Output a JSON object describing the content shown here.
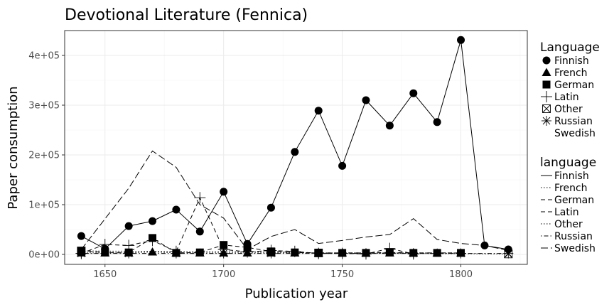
{
  "chart_data": {
    "type": "line",
    "title": "Devotional Literature (Fennica)",
    "xlabel": "Publication year",
    "ylabel": "Paper consumption",
    "xlim": [
      1633,
      1828
    ],
    "ylim": [
      -20000,
      450000
    ],
    "x_ticks": [
      1650,
      1700,
      1750,
      1800
    ],
    "y_ticks": [
      0,
      100000,
      200000,
      300000,
      400000
    ],
    "y_tick_labels": [
      "0e+00",
      "1e+05",
      "2e+05",
      "3e+05",
      "4e+05"
    ],
    "grid": true,
    "legend_placement": "right",
    "legend_shape_title": "Language",
    "legend_line_title": "language",
    "series": [
      {
        "name": "Finnish",
        "marker": "circle",
        "line": "solid",
        "x": [
          1640,
          1650,
          1660,
          1670,
          1680,
          1690,
          1700,
          1710,
          1720,
          1730,
          1740,
          1750,
          1760,
          1770,
          1780,
          1790,
          1800,
          1810,
          1820
        ],
        "y": [
          37000,
          11000,
          57000,
          67000,
          90000,
          46000,
          126000,
          21000,
          94000,
          206000,
          289000,
          178000,
          310000,
          259000,
          324000,
          266000,
          431000,
          18000,
          10000
        ]
      },
      {
        "name": "French",
        "marker": "triangle",
        "line": "dotted",
        "x": [
          1640,
          1650,
          1660,
          1670,
          1680,
          1690,
          1700,
          1710,
          1720,
          1730,
          1740,
          1750,
          1760,
          1770,
          1780,
          1790,
          1800
        ],
        "y": [
          3000,
          3000,
          3000,
          5000,
          3000,
          3000,
          3000,
          3000,
          3000,
          3000,
          3000,
          3000,
          3000,
          3000,
          3000,
          3000,
          3000
        ]
      },
      {
        "name": "German",
        "marker": "square",
        "line": "dashed",
        "x": [
          1640,
          1650,
          1660,
          1670,
          1680,
          1690,
          1700,
          1710,
          1720,
          1730,
          1740,
          1750,
          1760,
          1770,
          1780,
          1790,
          1800
        ],
        "y": [
          7000,
          4000,
          4000,
          33000,
          3000,
          4000,
          19000,
          14000,
          6000,
          4000,
          3000,
          3000,
          3000,
          4000,
          3000,
          3000,
          3000
        ]
      },
      {
        "name": "Latin",
        "marker": "plus",
        "line": "dashed",
        "x": [
          1640,
          1650,
          1660,
          1670,
          1680,
          1690,
          1700,
          1710,
          1720,
          1730,
          1740,
          1750,
          1760,
          1770,
          1780
        ],
        "y": [
          2000,
          20000,
          18000,
          28000,
          6000,
          114000,
          10000,
          5000,
          8000,
          6000,
          2000,
          2000,
          1000,
          12000,
          1000
        ]
      },
      {
        "name": "Other",
        "marker": "boxx",
        "line": "dotted",
        "x": [
          1640,
          1720,
          1740,
          1820
        ],
        "y": [
          7000,
          5000,
          3000,
          1000
        ]
      },
      {
        "name": "Russian",
        "marker": "star",
        "line": "dotdash",
        "x": [
          1640,
          1660,
          1680,
          1700,
          1720,
          1740,
          1760,
          1780,
          1800,
          1820
        ],
        "y": [
          2000,
          2000,
          2000,
          2000,
          2000,
          2000,
          2000,
          2000,
          2000,
          2000
        ]
      },
      {
        "name": "Swedish",
        "marker": "none",
        "line": "longdash",
        "x": [
          1640,
          1660,
          1670,
          1680,
          1690,
          1700,
          1710,
          1720,
          1730,
          1740,
          1750,
          1760,
          1770,
          1780,
          1790,
          1800,
          1810,
          1820
        ],
        "y": [
          10000,
          133000,
          208000,
          175000,
          100000,
          73000,
          10000,
          36000,
          50000,
          22000,
          28000,
          35000,
          40000,
          72000,
          30000,
          22000,
          18000,
          8000
        ]
      }
    ]
  }
}
